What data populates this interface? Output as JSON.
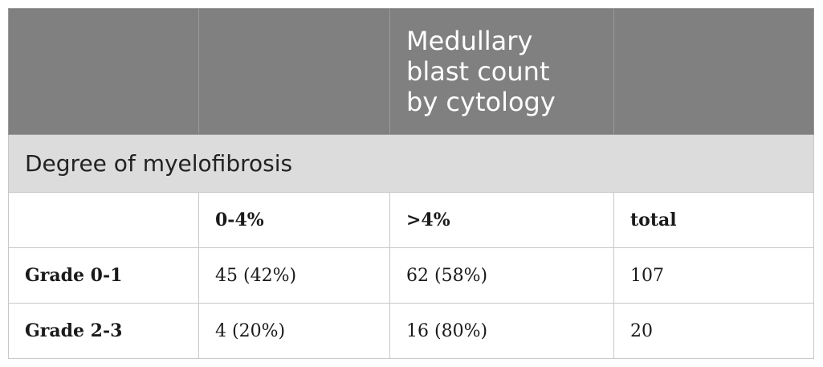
{
  "header": {
    "col3_lines": [
      "Medullary",
      "blast count",
      "by cytology"
    ]
  },
  "section": {
    "title": "Degree of myelofibrosis"
  },
  "subheader": {
    "cells": [
      "",
      "0-4%",
      ">4%",
      "total"
    ]
  },
  "rows": [
    {
      "label": "Grade 0-1",
      "cells": [
        "45 (42%)",
        "62 (58%)",
        "107"
      ]
    },
    {
      "label": "Grade 2-3",
      "cells": [
        "4 (20%)",
        "16 (80%)",
        "20"
      ]
    }
  ]
}
